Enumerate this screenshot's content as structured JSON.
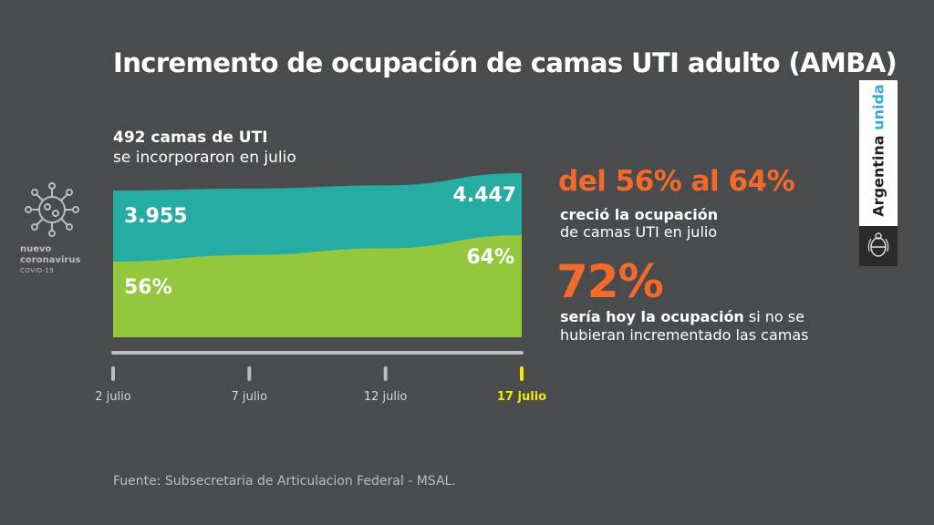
{
  "title": "Incremento de ocupación de camas UTI adulto (AMBA)",
  "beds_note": {
    "line1": "492 camas de UTI",
    "line2": "se incorporaron en julio"
  },
  "logo": {
    "line1": "nuevo",
    "line2": "coronavirus",
    "line3": "COVID-19"
  },
  "stat1": {
    "value": "del 56% al 64%",
    "desc_line1": "creció la ocupación",
    "desc_line2": "de camas UTI en julio"
  },
  "stat2": {
    "value": "72%",
    "desc_bold": "sería hoy la ocupación",
    "desc_rest": " si no se hubieran incrementado las camas"
  },
  "source": "Fuente: Subsecretaria de Articulacion Federal - MSAL.",
  "brand": {
    "word1": "Argentina",
    "word2": "unida"
  },
  "colors": {
    "background": "#4a4b4d",
    "total_beds_area": "#26aca3",
    "occupied_area": "#93c83e",
    "highlight": "#f36a2b",
    "current_date": "#f4e900"
  },
  "chart_data": {
    "type": "area",
    "x": [
      "2 julio",
      "7 julio",
      "12 julio",
      "17 julio"
    ],
    "highlighted_x": "17 julio",
    "series": [
      {
        "name": "",
        "values": [
          3955,
          4010,
          4100,
          4447
        ]
      },
      {
        "name": "",
        "values": [
          56,
          58,
          60,
          64
        ]
      }
    ],
    "data_labels": {
      "total_start": "3.955",
      "total_end": "4.447",
      "occupancy_start": "56%",
      "occupancy_end": "64%"
    }
  }
}
